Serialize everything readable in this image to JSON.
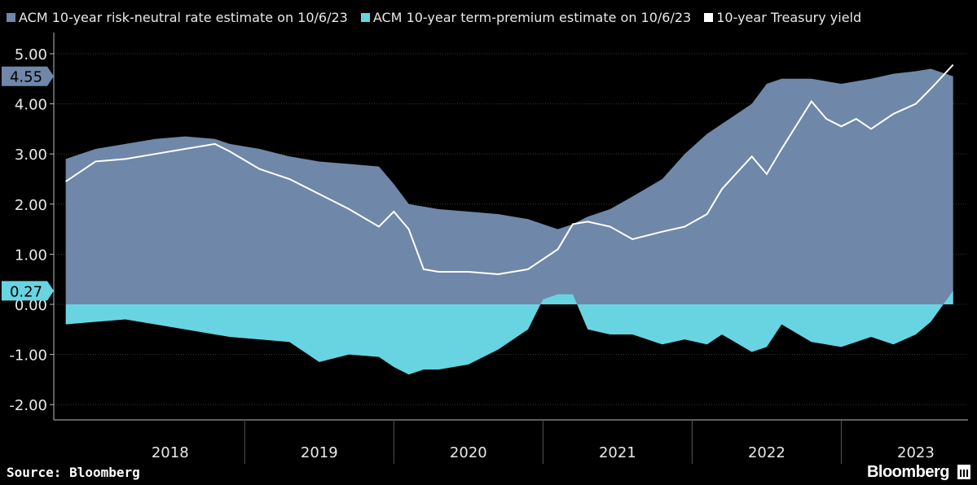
{
  "legend": {
    "items": [
      {
        "label": "ACM 10-year risk-neutral rate estimate on 10/6/23",
        "color": "#6f87a8"
      },
      {
        "label": "ACM 10-year term-premium estimate on 10/6/23",
        "color": "#68d4e2"
      },
      {
        "label": "10-year Treasury yield",
        "color": "#ffffff"
      }
    ]
  },
  "footer": {
    "source": "Source: Bloomberg",
    "brand": "Bloomberg"
  },
  "chart_data": {
    "type": "area",
    "ylim": [
      -2.3,
      5.2
    ],
    "grid": true,
    "legend_position": "top",
    "x_tick_labels": [
      "2018",
      "2019",
      "2020",
      "2021",
      "2022",
      "2023"
    ],
    "y_tick_labels": [
      "5.00",
      "4.00",
      "3.00",
      "2.00",
      "1.00",
      "0.00",
      "-1.00",
      "-2.00"
    ],
    "y_ticks": [
      5,
      4,
      3,
      2,
      1,
      0,
      -1,
      -2
    ],
    "last_value_tags": [
      {
        "label": "4.55",
        "value": 4.55,
        "color": "#6f87a8"
      },
      {
        "label": "0.27",
        "value": 0.27,
        "color": "#68d4e2"
      }
    ],
    "x": [
      2017.8,
      2018.0,
      2018.2,
      2018.4,
      2018.6,
      2018.8,
      2018.9,
      2019.1,
      2019.3,
      2019.5,
      2019.7,
      2019.9,
      2020.0,
      2020.1,
      2020.2,
      2020.3,
      2020.5,
      2020.7,
      2020.9,
      2021.0,
      2021.1,
      2021.2,
      2021.3,
      2021.45,
      2021.6,
      2021.8,
      2021.95,
      2022.1,
      2022.2,
      2022.4,
      2022.5,
      2022.6,
      2022.8,
      2022.9,
      2023.0,
      2023.1,
      2023.2,
      2023.35,
      2023.5,
      2023.6,
      2023.75
    ],
    "series": [
      {
        "name": "ACM 10-year risk-neutral rate estimate on 10/6/23",
        "values": [
          2.9,
          3.1,
          3.2,
          3.3,
          3.35,
          3.3,
          3.2,
          3.1,
          2.95,
          2.85,
          2.8,
          2.75,
          2.4,
          2.0,
          1.95,
          1.9,
          1.85,
          1.8,
          1.7,
          1.6,
          1.5,
          1.6,
          1.75,
          1.9,
          2.15,
          2.5,
          3.0,
          3.4,
          3.6,
          4.0,
          4.4,
          4.5,
          4.5,
          4.45,
          4.4,
          4.45,
          4.5,
          4.6,
          4.65,
          4.7,
          4.55
        ]
      },
      {
        "name": "ACM 10-year term-premium estimate on 10/6/23",
        "values": [
          -0.4,
          -0.35,
          -0.3,
          -0.4,
          -0.5,
          -0.6,
          -0.65,
          -0.7,
          -0.75,
          -1.15,
          -1.0,
          -1.05,
          -1.25,
          -1.4,
          -1.3,
          -1.3,
          -1.2,
          -0.9,
          -0.5,
          0.1,
          0.2,
          0.2,
          -0.5,
          -0.6,
          -0.6,
          -0.8,
          -0.7,
          -0.8,
          -0.6,
          -0.95,
          -0.85,
          -0.4,
          -0.75,
          -0.8,
          -0.85,
          -0.75,
          -0.65,
          -0.8,
          -0.6,
          -0.35,
          0.27
        ]
      },
      {
        "name": "10-year Treasury yield",
        "values": [
          2.45,
          2.85,
          2.9,
          3.0,
          3.1,
          3.2,
          3.05,
          2.7,
          2.5,
          2.2,
          1.9,
          1.55,
          1.85,
          1.5,
          0.7,
          0.65,
          0.65,
          0.6,
          0.7,
          0.9,
          1.1,
          1.6,
          1.65,
          1.55,
          1.3,
          1.45,
          1.55,
          1.8,
          2.3,
          2.95,
          2.6,
          3.1,
          4.05,
          3.7,
          3.55,
          3.7,
          3.5,
          3.8,
          4.0,
          4.3,
          4.78
        ]
      }
    ]
  }
}
